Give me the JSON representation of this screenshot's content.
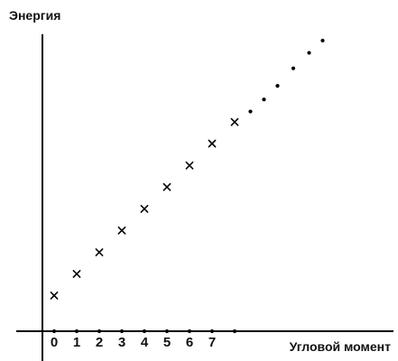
{
  "chart_data": {
    "type": "scatter",
    "ylabel": "Энергия",
    "xlabel": "Угловой момент",
    "x_ticks": [
      "0",
      "1",
      "2",
      "3",
      "4",
      "5",
      "6",
      "7"
    ],
    "xlim": [
      -0.4,
      15.1
    ],
    "ylim": [
      0,
      14
    ],
    "grid": false,
    "series": [
      {
        "marker": "x",
        "points": [
          {
            "x": 0,
            "y": 1.57
          },
          {
            "x": 1,
            "y": 2.52
          },
          {
            "x": 2,
            "y": 3.47
          },
          {
            "x": 3,
            "y": 4.43
          },
          {
            "x": 4,
            "y": 5.38
          },
          {
            "x": 5,
            "y": 6.34
          },
          {
            "x": 6,
            "y": 7.29
          },
          {
            "x": 7,
            "y": 8.25
          },
          {
            "x": 8,
            "y": 9.2
          }
        ]
      },
      {
        "marker": "dot",
        "points": [
          {
            "x": 8.7,
            "y": 9.66
          },
          {
            "x": 9.3,
            "y": 10.19
          },
          {
            "x": 9.9,
            "y": 10.79
          },
          {
            "x": 10.6,
            "y": 11.56
          },
          {
            "x": 11.3,
            "y": 12.24
          },
          {
            "x": 11.9,
            "y": 12.78
          }
        ]
      },
      {
        "marker": "dot",
        "points": [
          {
            "x": 0,
            "y": 0
          },
          {
            "x": 1,
            "y": 0
          },
          {
            "x": 2,
            "y": 0
          },
          {
            "x": 3,
            "y": 0
          },
          {
            "x": 4,
            "y": 0
          },
          {
            "x": 5,
            "y": 0
          },
          {
            "x": 6,
            "y": 0
          },
          {
            "x": 7,
            "y": 0
          },
          {
            "x": 8,
            "y": 0
          }
        ]
      }
    ]
  }
}
